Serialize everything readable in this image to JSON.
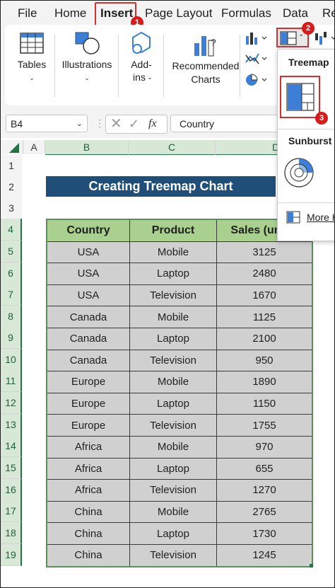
{
  "menu": {
    "tabs": [
      {
        "label": "File"
      },
      {
        "label": "Home"
      },
      {
        "label": "Insert"
      },
      {
        "label": "Page Layout"
      },
      {
        "label": "Formulas"
      },
      {
        "label": "Data"
      },
      {
        "label": "Re"
      }
    ]
  },
  "ribbon": {
    "tables": "Tables",
    "illustrations": "Illustrations",
    "addins_line1": "Add-",
    "addins_line2": "ins",
    "recommended_line1": "Recommended",
    "recommended_line2": "Charts"
  },
  "badges": {
    "one": "1",
    "two": "2",
    "three": "3"
  },
  "dropdown": {
    "treemap_title": "Treemap",
    "sunburst_title": "Sunburst",
    "more_label": "More H"
  },
  "formula_bar": {
    "name_box": "B4",
    "fx": "fx",
    "formula": "Country"
  },
  "columns": [
    "A",
    "B",
    "C",
    "D"
  ],
  "rows": [
    "1",
    "2",
    "3",
    "4",
    "5",
    "6",
    "7",
    "8",
    "9",
    "10",
    "11",
    "12",
    "13",
    "14",
    "15",
    "16",
    "17",
    "18",
    "19"
  ],
  "sheet": {
    "title": "Creating Treemap Chart",
    "headers": [
      "Country",
      "Product",
      "Sales (units)"
    ],
    "data": [
      [
        "USA",
        "Mobile",
        "3125"
      ],
      [
        "USA",
        "Laptop",
        "2480"
      ],
      [
        "USA",
        "Television",
        "1670"
      ],
      [
        "Canada",
        "Mobile",
        "1125"
      ],
      [
        "Canada",
        "Laptop",
        "2100"
      ],
      [
        "Canada",
        "Television",
        "950"
      ],
      [
        "Europe",
        "Mobile",
        "1890"
      ],
      [
        "Europe",
        "Laptop",
        "1150"
      ],
      [
        "Europe",
        "Television",
        "1755"
      ],
      [
        "Africa",
        "Mobile",
        "970"
      ],
      [
        "Africa",
        "Laptop",
        "655"
      ],
      [
        "Africa",
        "Television",
        "1270"
      ],
      [
        "China",
        "Mobile",
        "2765"
      ],
      [
        "China",
        "Laptop",
        "1730"
      ],
      [
        "China",
        "Television",
        "1245"
      ]
    ]
  },
  "colors": {
    "accent_red": "#d32f2f",
    "banner": "#1f4e79",
    "header_green": "#a9d08e",
    "cell_gray": "#d0d0d0",
    "excel_green": "#217346"
  }
}
